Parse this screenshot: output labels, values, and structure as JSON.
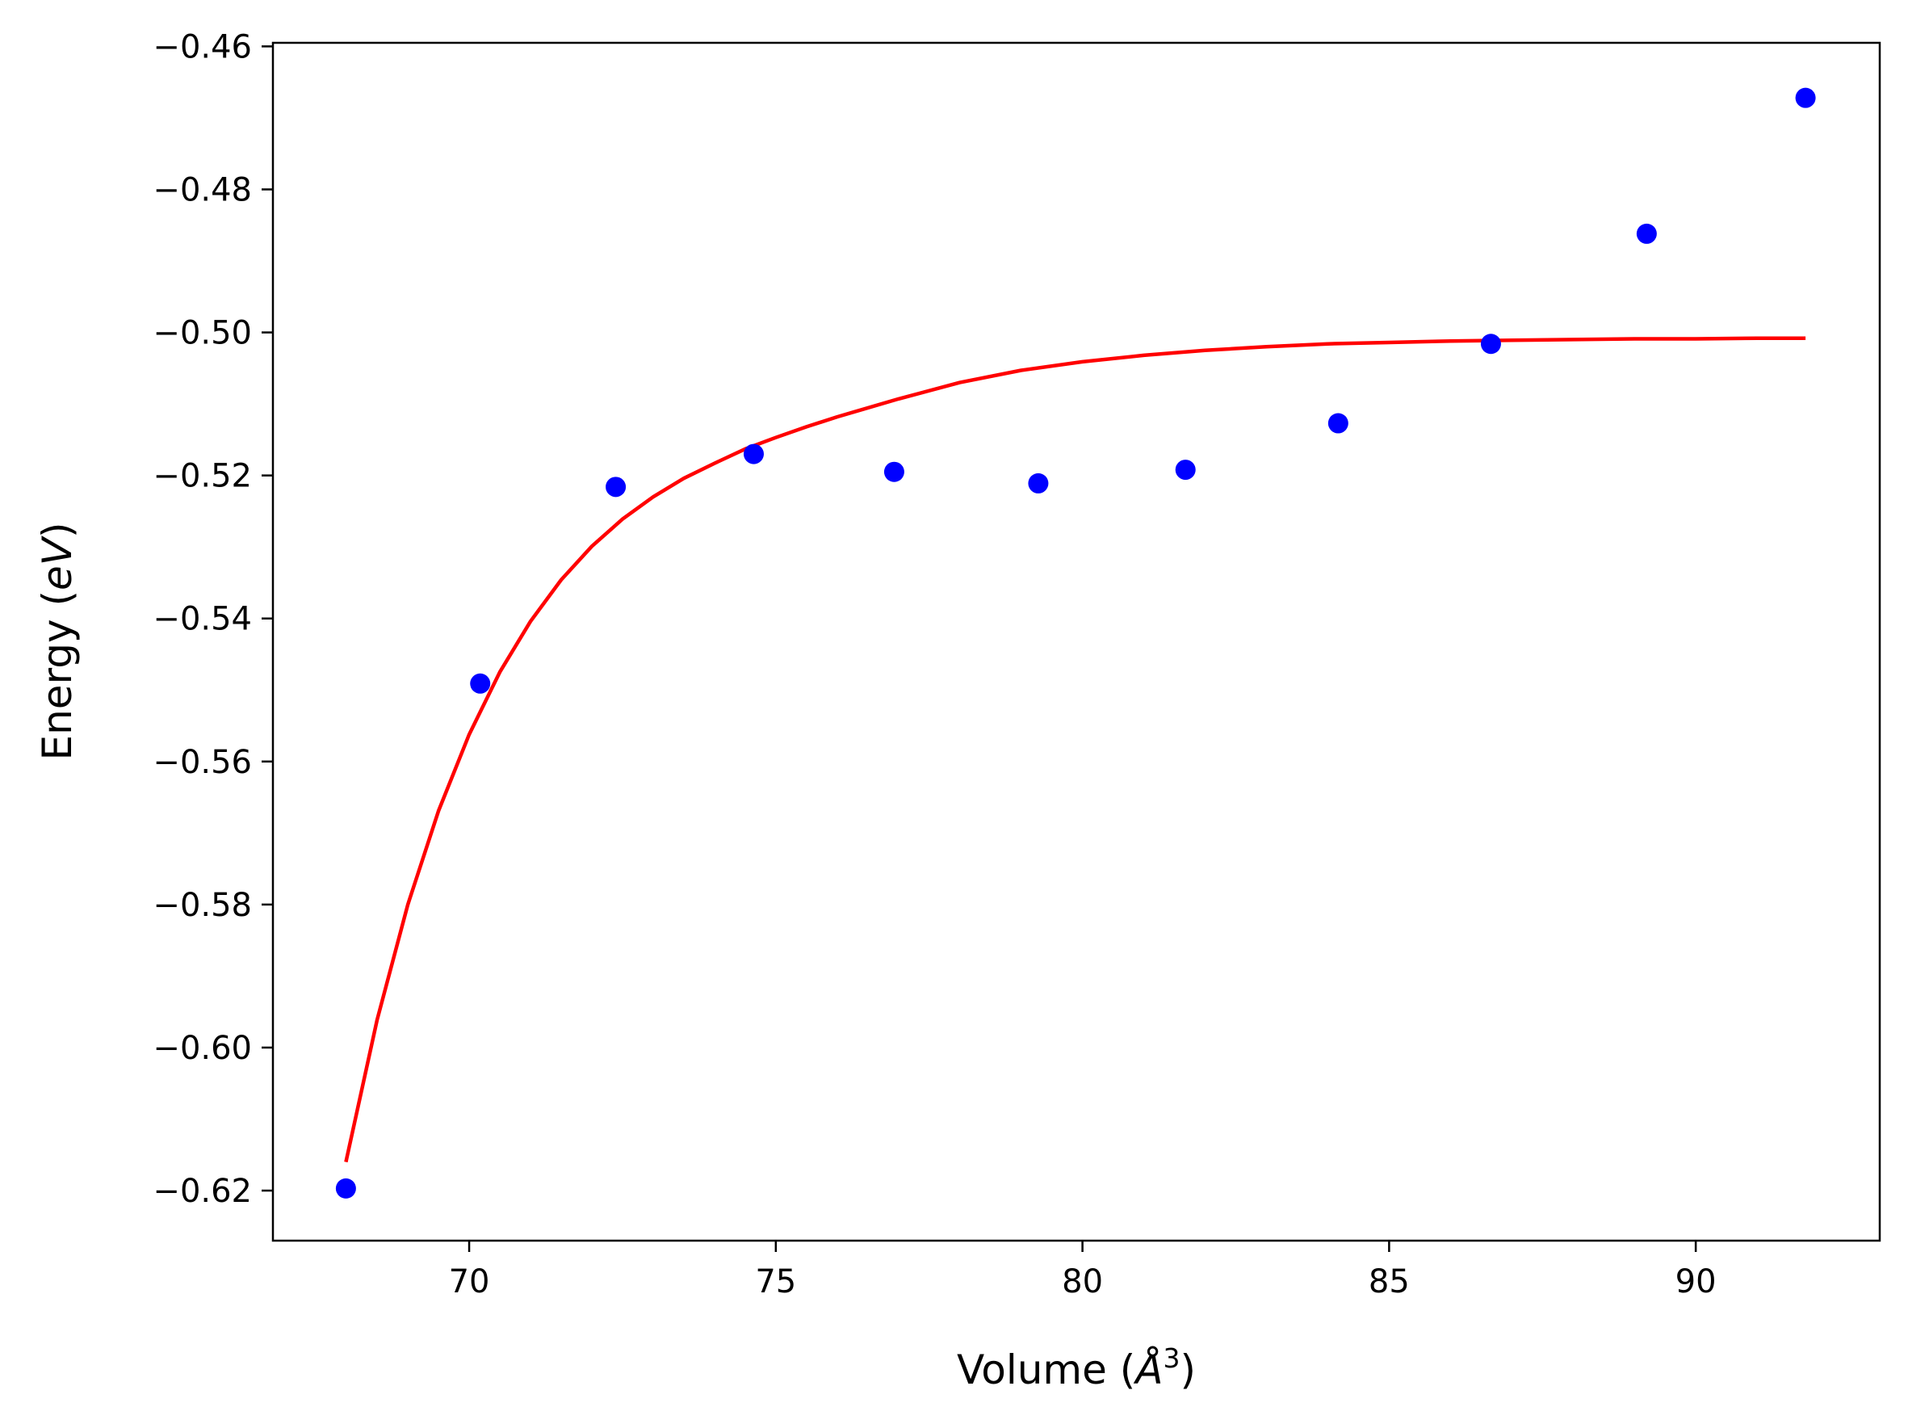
{
  "chart_data": {
    "type": "scatter",
    "title": "",
    "xlabel": {
      "prefix": "Volume (",
      "symbol": "Å",
      "sup": "3",
      "suffix": ")"
    },
    "ylabel": {
      "prefix": "Energy (",
      "symbol": "eV",
      "suffix": ")"
    },
    "xlim": [
      66.8,
      93.0
    ],
    "ylim": [
      -0.627,
      -0.4595
    ],
    "x_ticks": [
      70,
      75,
      80,
      85,
      90
    ],
    "x_tick_labels": [
      "70",
      "75",
      "80",
      "85",
      "90"
    ],
    "y_ticks": [
      -0.46,
      -0.48,
      -0.5,
      -0.52,
      -0.54,
      -0.56,
      -0.58,
      -0.6,
      -0.62
    ],
    "y_tick_labels": [
      "−0.46",
      "−0.48",
      "−0.50",
      "−0.52",
      "−0.54",
      "−0.56",
      "−0.58",
      "−0.60",
      "−0.62"
    ],
    "grid": false,
    "series": [
      {
        "kind": "scatter",
        "color": "#0000ff",
        "x": [
          67.99,
          70.18,
          72.39,
          74.64,
          76.93,
          79.28,
          81.68,
          84.17,
          86.66,
          89.2,
          91.79
        ],
        "y": [
          -0.6197,
          -0.5491,
          -0.5216,
          -0.517,
          -0.5195,
          -0.5211,
          -0.5192,
          -0.5127,
          -0.5016,
          -0.4862,
          -0.4672
        ]
      },
      {
        "kind": "line",
        "color": "#ff0000",
        "x": [
          67.99,
          68.5,
          69.0,
          69.5,
          70.0,
          70.5,
          71.0,
          71.5,
          72.0,
          72.5,
          73.0,
          73.5,
          74.0,
          74.5,
          75.0,
          75.5,
          76.0,
          77.0,
          78.0,
          79.0,
          80.0,
          81.0,
          82.0,
          83.0,
          84.0,
          85.0,
          86.0,
          87.0,
          88.0,
          89.0,
          90.0,
          91.0,
          91.79
        ],
        "y": [
          -0.616,
          -0.5961,
          -0.58,
          -0.5669,
          -0.5562,
          -0.5475,
          -0.5404,
          -0.5346,
          -0.5299,
          -0.5261,
          -0.523,
          -0.5204,
          -0.5183,
          -0.5163,
          -0.5147,
          -0.5132,
          -0.5118,
          -0.5093,
          -0.507,
          -0.5053,
          -0.5041,
          -0.5032,
          -0.5025,
          -0.502,
          -0.5016,
          -0.5014,
          -0.5012,
          -0.5011,
          -0.501,
          -0.5009,
          -0.5009,
          -0.5008,
          -0.5008
        ]
      }
    ]
  }
}
